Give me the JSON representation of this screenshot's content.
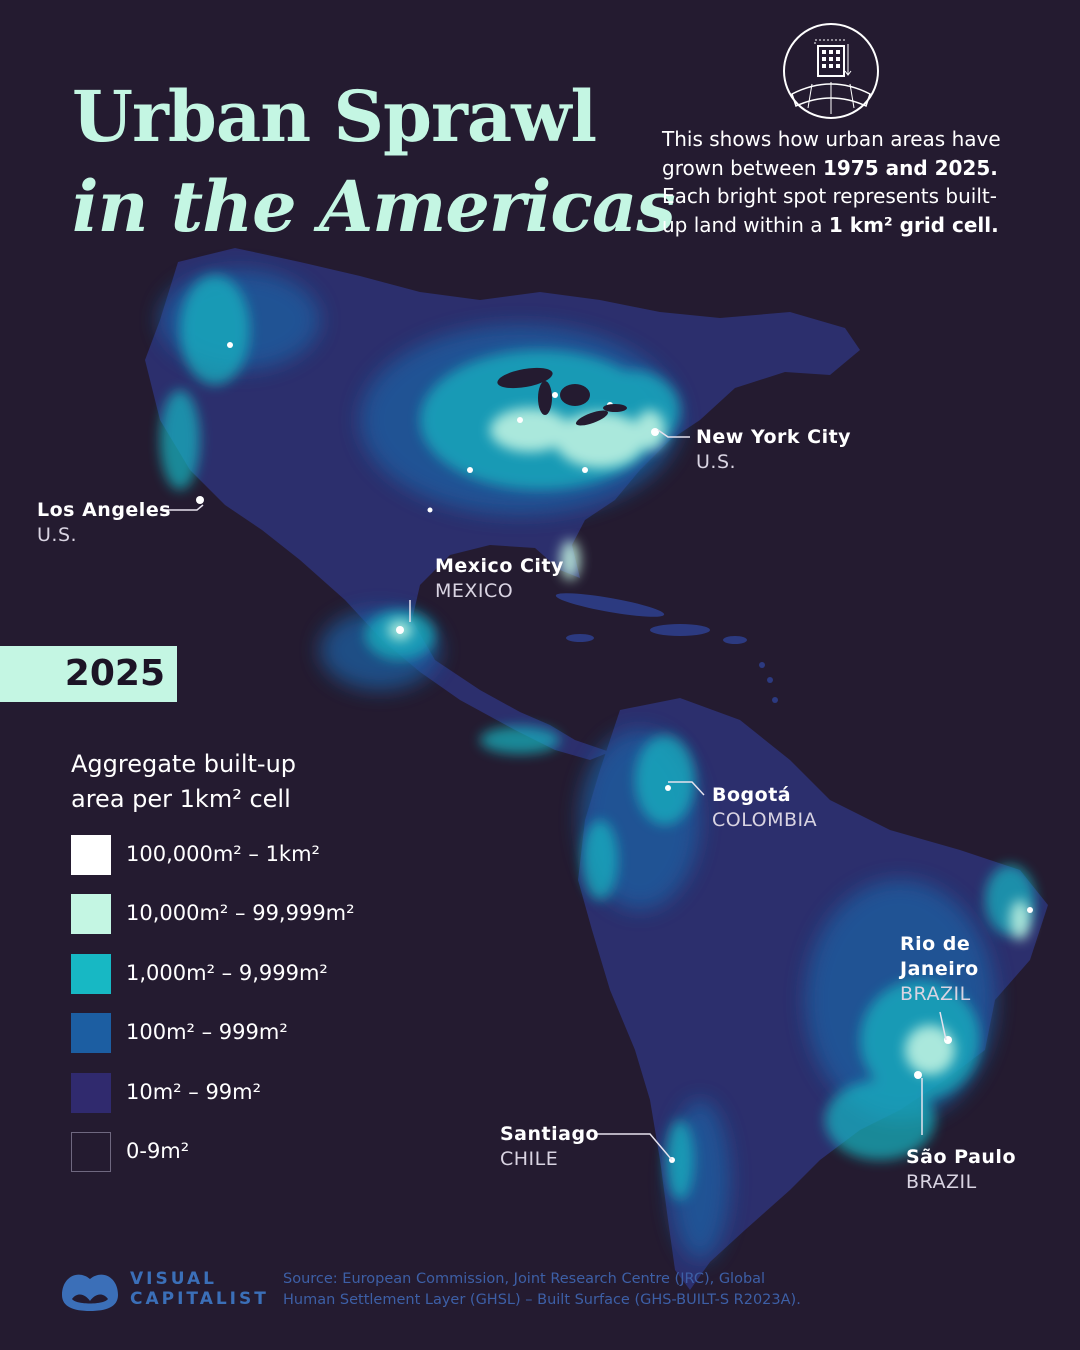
{
  "title": {
    "line1": "Urban Sprawl",
    "line2": "in the Americas"
  },
  "intro": {
    "part1": "This shows how urban areas have grown between ",
    "years": "1975 and 2025.",
    "part2": " Each bright spot represents built-up land within a ",
    "cell": "1 km² grid cell."
  },
  "year": "2025",
  "cities": [
    {
      "name": "New York City",
      "country": "U.S."
    },
    {
      "name": "Los Angeles",
      "country": "U.S."
    },
    {
      "name": "Mexico City",
      "country": "MEXICO"
    },
    {
      "name": "Bogotá",
      "country": "COLOMBIA"
    },
    {
      "name": "Rio de Janeiro",
      "country": "BRAZIL"
    },
    {
      "name": "Santiago",
      "country": "CHILE"
    },
    {
      "name": "São Paulo",
      "country": "BRAZIL"
    }
  ],
  "legend": {
    "title": "Aggregate built-up area per 1km² cell",
    "items": [
      {
        "label": "100,000m² – 1km²",
        "color": "#ffffff"
      },
      {
        "label": "10,000m² – 99,999m²",
        "color": "#c4f6e3"
      },
      {
        "label": "1,000m² – 9,999m²",
        "color": "#17b8c4"
      },
      {
        "label": "100m² – 999m²",
        "color": "#1c5ea2"
      },
      {
        "label": "10m² – 99m²",
        "color": "#302a6e"
      },
      {
        "label": "0-9m²",
        "color": "#241b30"
      }
    ]
  },
  "logo": {
    "line1": "VISUAL",
    "line2": "CAPITALIST"
  },
  "source": "Source: European Commission, Joint Research Centre (JRC), Global Human Settlement Layer (GHSL) – Built Surface (GHS-BUILT-S R2023A).",
  "colors": {
    "background": "#241b30",
    "accent": "#c4f6e3",
    "brand": "#3b6fb8"
  }
}
